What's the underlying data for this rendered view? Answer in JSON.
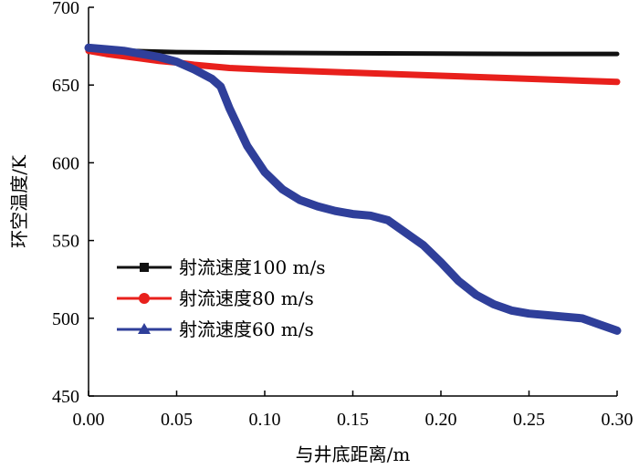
{
  "chart_data": {
    "type": "line",
    "title": "",
    "xlabel": "与井底距离/m",
    "ylabel": "环空温度/K",
    "xlim": [
      0,
      0.3
    ],
    "ylim": [
      450,
      700
    ],
    "xticks": [
      0.0,
      0.05,
      0.1,
      0.15,
      0.2,
      0.25,
      0.3
    ],
    "yticks": [
      450,
      500,
      550,
      600,
      650,
      700
    ],
    "xtick_labels": [
      "0.00",
      "0.05",
      "0.10",
      "0.15",
      "0.20",
      "0.25",
      "0.30"
    ],
    "ytick_labels": [
      "450",
      "500",
      "550",
      "600",
      "650",
      "700"
    ],
    "grid": false,
    "legend_position": "left-middle",
    "series": [
      {
        "name": "射流速度100 m/s",
        "color": "#111111",
        "marker": "square",
        "x": [
          0.0,
          0.01,
          0.02,
          0.03,
          0.05,
          0.1,
          0.15,
          0.2,
          0.25,
          0.3
        ],
        "y": [
          673,
          672.6,
          672.2,
          671.8,
          671.2,
          670.7,
          670.4,
          670.2,
          670.0,
          670.0
        ]
      },
      {
        "name": "射流速度80 m/s",
        "color": "#e8201c",
        "marker": "circle",
        "x": [
          0.0,
          0.01,
          0.02,
          0.03,
          0.04,
          0.05,
          0.06,
          0.08,
          0.1,
          0.15,
          0.2,
          0.25,
          0.3
        ],
        "y": [
          672,
          670,
          668.5,
          667,
          665.5,
          664.5,
          663,
          661,
          660,
          658,
          656,
          654,
          652
        ]
      },
      {
        "name": "射流速度60 m/s",
        "color": "#2f3f9a",
        "marker": "triangle",
        "x": [
          0.0,
          0.01,
          0.02,
          0.03,
          0.04,
          0.05,
          0.06,
          0.07,
          0.075,
          0.08,
          0.09,
          0.1,
          0.11,
          0.12,
          0.13,
          0.14,
          0.15,
          0.16,
          0.17,
          0.18,
          0.19,
          0.2,
          0.21,
          0.22,
          0.23,
          0.24,
          0.25,
          0.26,
          0.27,
          0.28,
          0.29,
          0.3
        ],
        "y": [
          674,
          673,
          672,
          670,
          668,
          665,
          660,
          654,
          649,
          635,
          611,
          594,
          583,
          576,
          572,
          569,
          567,
          566,
          563,
          555,
          547,
          536,
          524,
          515,
          509,
          505,
          503,
          502,
          501,
          500,
          496,
          492
        ]
      }
    ]
  }
}
